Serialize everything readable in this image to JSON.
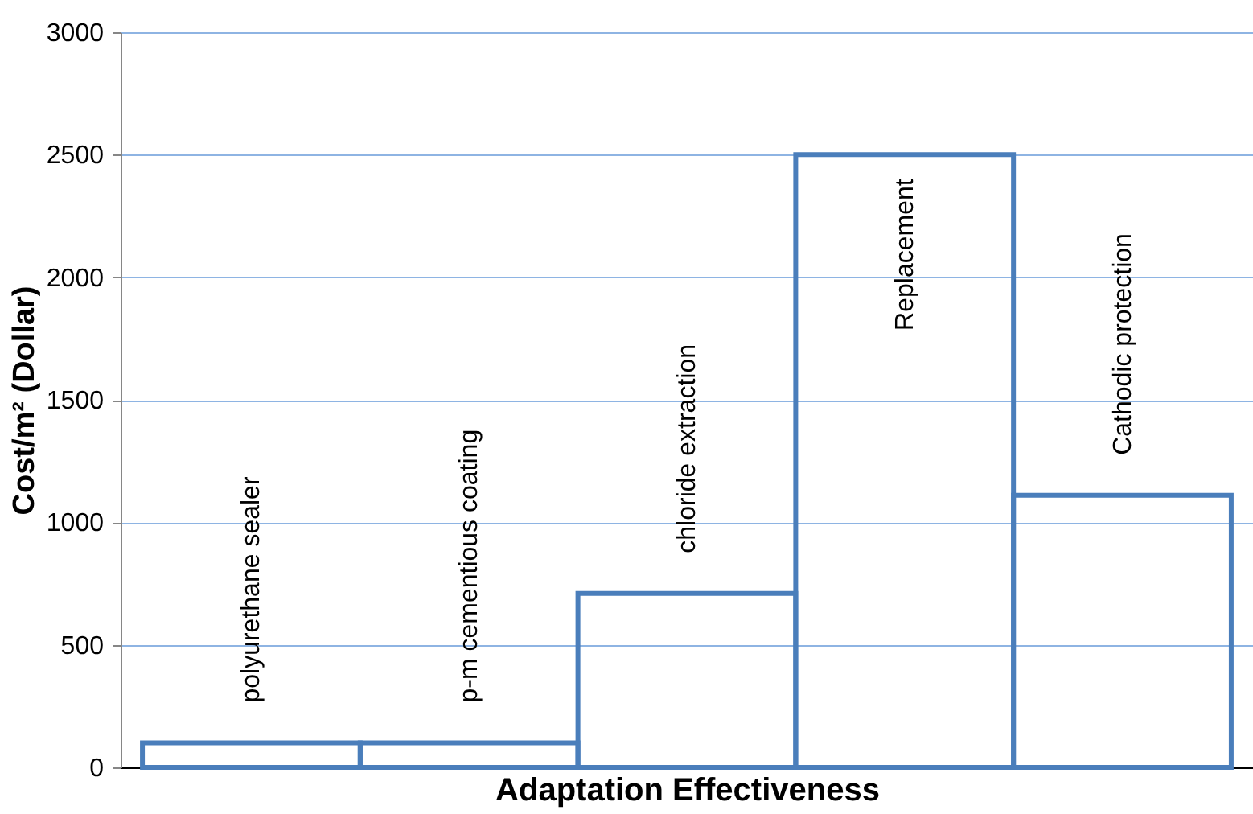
{
  "chart_data": {
    "type": "bar",
    "categories": [
      "polyurethane sealer",
      "p-m cementious  coating",
      "chloride extraction",
      "Replacement",
      "Cathodic protection"
    ],
    "values": [
      100,
      100,
      710,
      2500,
      1110
    ],
    "color": "#4a7ebb",
    "xlabel": "Adaptation Effectiveness",
    "ylabel": "Cost/m² (Dollar)",
    "ylim": [
      0,
      3000
    ],
    "yticks": [
      0,
      500,
      1000,
      1500,
      2000,
      2500,
      3000
    ],
    "grid": "y",
    "tick_labels": "y"
  }
}
